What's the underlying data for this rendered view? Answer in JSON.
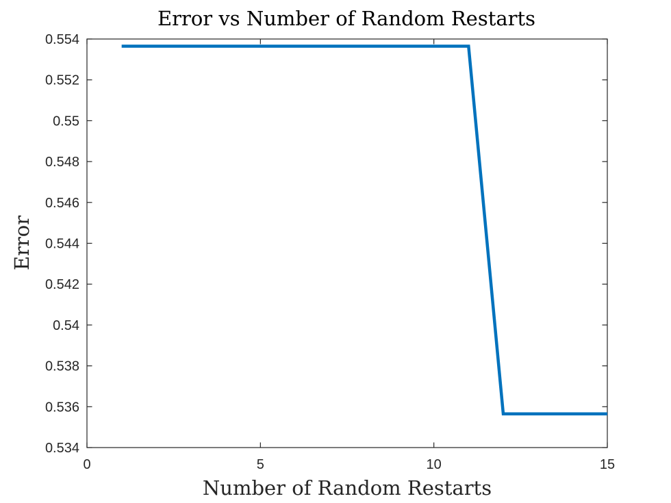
{
  "chart_data": {
    "type": "line",
    "title": "Error vs Number of Random Restarts",
    "xlabel": "Number of Random Restarts",
    "ylabel": "Error",
    "xlim": [
      0,
      15
    ],
    "ylim": [
      0.534,
      0.554
    ],
    "xticks": [
      0,
      5,
      10,
      15
    ],
    "xtick_labels": [
      "0",
      "5",
      "10",
      "15"
    ],
    "yticks": [
      0.534,
      0.536,
      0.538,
      0.54,
      0.542,
      0.544,
      0.546,
      0.548,
      0.55,
      0.552,
      0.554
    ],
    "ytick_labels": [
      "0.534",
      "0.536",
      "0.538",
      "0.54",
      "0.542",
      "0.544",
      "0.546",
      "0.548",
      "0.55",
      "0.552",
      "0.554"
    ],
    "grid": false,
    "series": [
      {
        "color": "#0072BD",
        "x": [
          1,
          2,
          3,
          4,
          5,
          6,
          7,
          8,
          9,
          10,
          11,
          12,
          13,
          14,
          15
        ],
        "y": [
          0.55365,
          0.55365,
          0.55365,
          0.55365,
          0.55365,
          0.55365,
          0.55365,
          0.55365,
          0.55365,
          0.55365,
          0.55365,
          0.53565,
          0.53565,
          0.53565,
          0.53565
        ]
      }
    ]
  }
}
